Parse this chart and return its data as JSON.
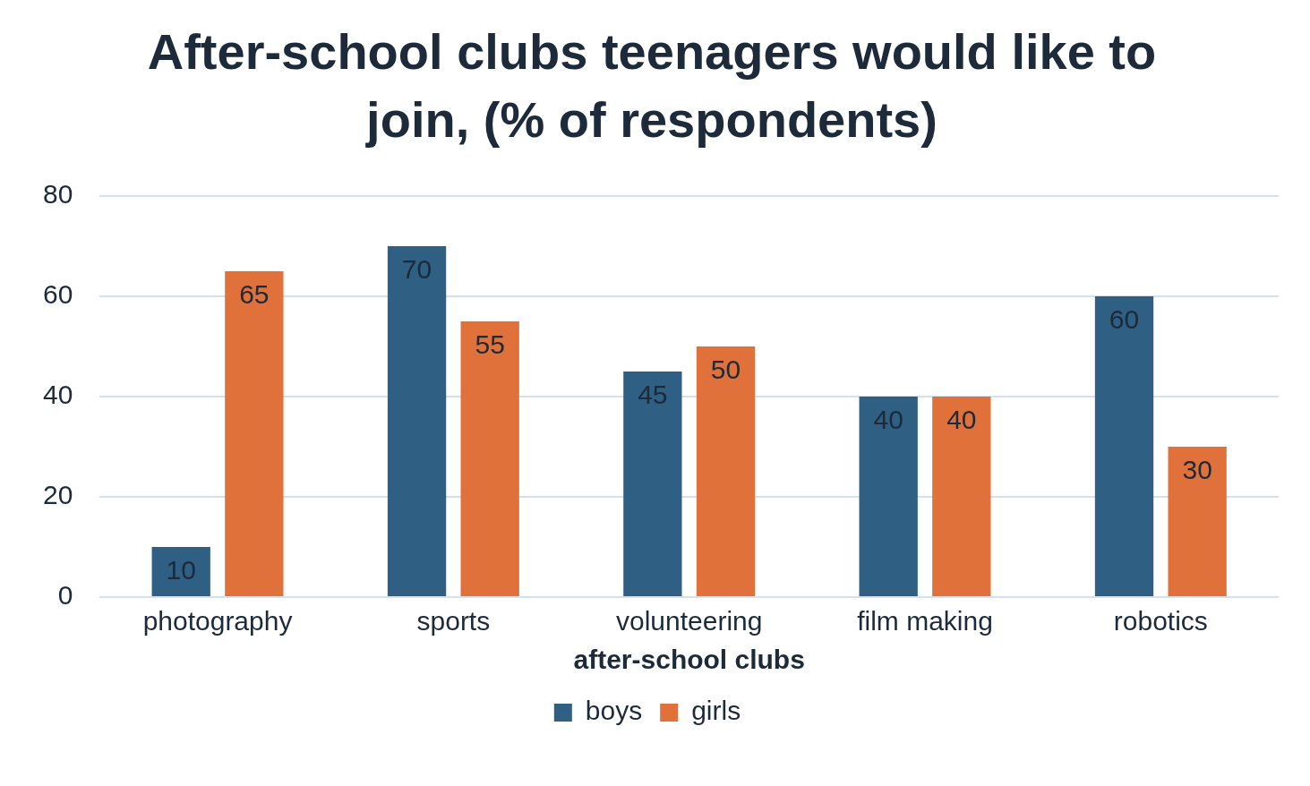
{
  "chart_data": {
    "type": "bar",
    "title": "After-school clubs teenagers would like to join, (% of respondents)",
    "xlabel": "after-school clubs",
    "categories": [
      "photography",
      "sports",
      "volunteering",
      "film making",
      "robotics"
    ],
    "series": [
      {
        "name": "boys",
        "color": "#2f5f82",
        "values": [
          10,
          70,
          45,
          40,
          60
        ]
      },
      {
        "name": "girls",
        "color": "#e0713b",
        "values": [
          65,
          55,
          50,
          40,
          30
        ]
      }
    ],
    "ylim": [
      0,
      80
    ],
    "yticks": [
      0,
      20,
      40,
      60,
      80
    ],
    "grid": "y",
    "legend": "bottom",
    "data_labels": true
  }
}
